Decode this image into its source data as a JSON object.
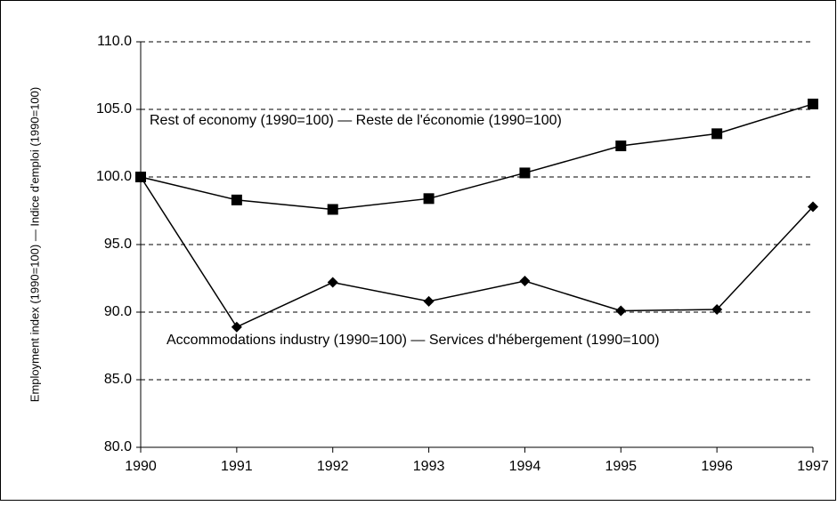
{
  "chart_data": {
    "type": "line",
    "y_axis_label": "Employment index (1990=100) — Indice d'emploi (1990=100)",
    "x": [
      1990,
      1991,
      1992,
      1993,
      1994,
      1995,
      1996,
      1997
    ],
    "xlim": [
      1990,
      1997
    ],
    "xticks": [
      1990,
      1991,
      1992,
      1993,
      1994,
      1995,
      1996,
      1997
    ],
    "ylim": [
      80,
      110
    ],
    "yticks": [
      {
        "value": 80,
        "label": "80.0"
      },
      {
        "value": 85,
        "label": "85.0"
      },
      {
        "value": 90,
        "label": "90.0"
      },
      {
        "value": 95,
        "label": "95.0"
      },
      {
        "value": 100,
        "label": "100.0"
      },
      {
        "value": 105,
        "label": "105.0"
      },
      {
        "value": 110,
        "label": "110.0"
      }
    ],
    "grid": true,
    "series": [
      {
        "name": "Rest of economy (1990=100) — Reste de l'économie (1990=100)",
        "color": "#000000",
        "marker": "square",
        "values": [
          100,
          98.3,
          97.6,
          98.4,
          100.3,
          102.3,
          103.2,
          105.4
        ]
      },
      {
        "name": "Accommodations industry (1990=100) — Services d'hébergement (1990=100)",
        "color": "#000000",
        "marker": "diamond",
        "values": [
          100,
          88.9,
          92.2,
          90.8,
          92.3,
          90.1,
          90.2,
          97.8
        ]
      }
    ]
  }
}
